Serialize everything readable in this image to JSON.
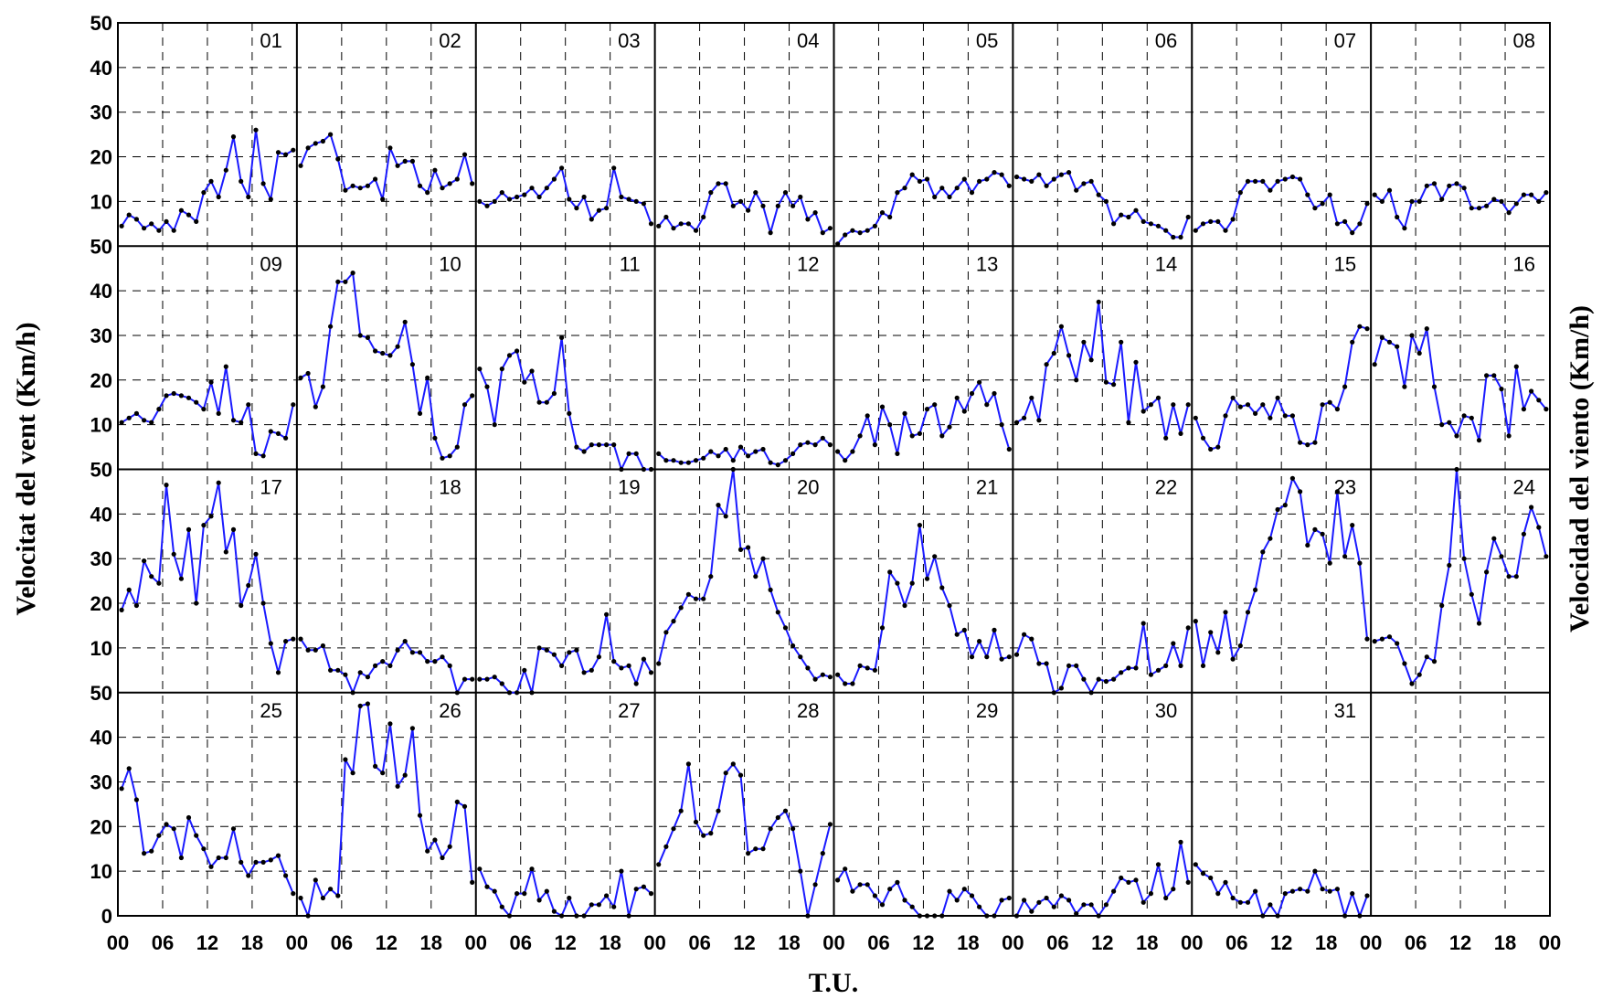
{
  "chart_data": {
    "type": "line",
    "ylabel_left": "Velocitat del vent (Km/h)",
    "ylabel_right": "Velocidad del viento (Km/h)",
    "xlabel": "T.U.",
    "ylim": [
      0,
      50
    ],
    "y_ticks": [
      0,
      10,
      20,
      30,
      40,
      50
    ],
    "x_tick_labels": [
      "00",
      "06",
      "12",
      "18"
    ],
    "x_tick_end_label": "00",
    "grid": true,
    "line_color": "#1a1aff",
    "marker_color": "#000000",
    "rows": 4,
    "days_per_row": 8,
    "hours": [
      0,
      1,
      2,
      3,
      4,
      5,
      6,
      7,
      8,
      9,
      10,
      11,
      12,
      13,
      14,
      15,
      16,
      17,
      18,
      19,
      20,
      21,
      22,
      23
    ],
    "days": [
      {
        "label": "01",
        "values": [
          4.5,
          7,
          6,
          4,
          5,
          3.5,
          5.5,
          3.5,
          8,
          7,
          5.5,
          12,
          14.5,
          11,
          17,
          24.5,
          14.5,
          11,
          26,
          14,
          10.5,
          21,
          20.5,
          21.5
        ]
      },
      {
        "label": "02",
        "values": [
          18,
          22,
          23,
          23.5,
          25,
          19.5,
          12.5,
          13.5,
          13,
          13.5,
          15,
          10.5,
          22,
          18,
          19,
          19,
          13.5,
          12,
          17,
          13,
          14,
          15,
          20.5,
          14
        ]
      },
      {
        "label": "03",
        "values": [
          10,
          9,
          10,
          12,
          10.5,
          11,
          11.5,
          13,
          11,
          13,
          15,
          17.5,
          10.5,
          8.5,
          11,
          6,
          8,
          8.5,
          17.5,
          11,
          10.5,
          10,
          9.5,
          5
        ]
      },
      {
        "label": "04",
        "values": [
          4.5,
          6.5,
          4,
          5,
          5,
          3.5,
          6.5,
          12,
          14,
          14,
          9,
          10,
          8,
          12,
          9,
          3,
          9,
          12,
          9,
          11,
          6,
          7.5,
          3,
          4
        ]
      },
      {
        "label": "05",
        "values": [
          0.5,
          2.5,
          3.5,
          3,
          3.5,
          4.5,
          7.5,
          6.5,
          12,
          13,
          16,
          14.5,
          15,
          11,
          13,
          11,
          13,
          15,
          12,
          14.5,
          15,
          16.5,
          16,
          13.5
        ]
      },
      {
        "label": "06",
        "values": [
          15.5,
          15,
          14.5,
          16,
          13.5,
          15,
          16,
          16.5,
          12.5,
          14,
          14.5,
          11.5,
          10,
          5,
          7,
          6.5,
          8,
          5.5,
          5,
          4.5,
          3.5,
          2,
          2,
          6.5
        ]
      },
      {
        "label": "07",
        "values": [
          3.5,
          5,
          5.5,
          5.5,
          3.5,
          6,
          12,
          14.5,
          14.5,
          14.5,
          12.5,
          14.5,
          15,
          15.5,
          15,
          11.5,
          8.5,
          9.5,
          11.5,
          5,
          5.5,
          3,
          5,
          9.5
        ]
      },
      {
        "label": "08",
        "values": [
          11.5,
          10,
          12.5,
          6.5,
          4,
          10,
          10,
          13.5,
          14,
          10.5,
          13.5,
          14,
          13,
          8.5,
          8.5,
          9,
          10.5,
          10,
          7.5,
          9.5,
          11.5,
          11.5,
          10,
          12
        ]
      },
      {
        "label": "09",
        "values": [
          10.5,
          11.5,
          12.5,
          11,
          10.5,
          13.5,
          16.5,
          17,
          16.5,
          16,
          15,
          13.5,
          19.5,
          12.5,
          23,
          11,
          10.5,
          14.5,
          3.5,
          3,
          8.5,
          8,
          7,
          14.5
        ]
      },
      {
        "label": "10",
        "values": [
          20.5,
          21.5,
          14,
          18.5,
          32,
          42,
          42,
          44,
          30,
          29.5,
          26.5,
          26,
          25.5,
          27.5,
          33,
          23.5,
          12.5,
          20.5,
          7,
          2.5,
          3,
          5,
          14.5,
          16.5
        ]
      },
      {
        "label": "11",
        "values": [
          22.5,
          18.5,
          10,
          22.5,
          25.5,
          26.5,
          19.5,
          22,
          15,
          15,
          17,
          29.5,
          12.5,
          5,
          4,
          5.5,
          5.5,
          5.5,
          5.5,
          0,
          3.5,
          3.5,
          0,
          0
        ]
      },
      {
        "label": "12",
        "values": [
          3.5,
          2,
          2,
          1.5,
          1.5,
          2,
          2.5,
          4,
          3,
          4.5,
          2,
          5,
          3,
          4,
          4.5,
          1.5,
          1,
          2,
          3.5,
          5.5,
          6,
          5.5,
          7,
          5.5
        ]
      },
      {
        "label": "13",
        "values": [
          4,
          2,
          4,
          7.5,
          12,
          5.5,
          14,
          10,
          3.5,
          12.5,
          7.5,
          8,
          13.5,
          14.5,
          7.5,
          9.5,
          16,
          13,
          17,
          19.5,
          14.5,
          17,
          10,
          4.5
        ]
      },
      {
        "label": "14",
        "values": [
          10.5,
          11.5,
          16,
          11,
          23.5,
          26,
          32,
          25.5,
          20,
          28.5,
          24.5,
          37.5,
          19.5,
          19,
          28.5,
          10.5,
          24,
          13,
          14.5,
          16,
          7,
          14.5,
          8,
          14.5
        ]
      },
      {
        "label": "15",
        "values": [
          11.5,
          7,
          4.5,
          5,
          12,
          16,
          14,
          14.5,
          12.5,
          14.5,
          11.5,
          16,
          12,
          12,
          6,
          5.5,
          6,
          14.5,
          15,
          13.5,
          18.5,
          28.5,
          32,
          31.5
        ]
      },
      {
        "label": "16",
        "values": [
          23.5,
          29.5,
          28.5,
          27.5,
          18.5,
          30,
          26,
          31.5,
          18.5,
          10,
          10.5,
          7.5,
          12,
          11.5,
          6.5,
          21,
          21,
          18,
          7.5,
          23,
          13.5,
          17.5,
          15.5,
          13.5
        ]
      },
      {
        "label": "17",
        "values": [
          18.5,
          23,
          19.5,
          29.5,
          26,
          24.5,
          46.5,
          31,
          25.5,
          36.5,
          20,
          37.5,
          39.5,
          47,
          31.5,
          36.5,
          19.5,
          24,
          31,
          20,
          11,
          4.5,
          11.5,
          12
        ]
      },
      {
        "label": "18",
        "values": [
          12,
          9.5,
          9.5,
          10.5,
          5,
          5,
          4,
          0,
          4.5,
          3.5,
          6,
          7,
          6,
          9.5,
          11.5,
          9,
          9,
          7,
          7,
          8,
          6,
          0,
          3,
          3
        ]
      },
      {
        "label": "19",
        "values": [
          3,
          3,
          3.5,
          2,
          0,
          0,
          5,
          0,
          10,
          9.5,
          8.5,
          6,
          9,
          9.5,
          4.5,
          5,
          8,
          17.5,
          7,
          5.5,
          6,
          2,
          7.5,
          4.5
        ]
      },
      {
        "label": "20",
        "values": [
          6.5,
          13.5,
          16,
          19,
          22,
          21,
          21,
          26,
          42,
          39.5,
          53,
          32,
          32.5,
          26,
          30,
          23,
          18,
          14.5,
          10.5,
          8,
          5.5,
          3,
          4,
          3.5
        ]
      },
      {
        "label": "21",
        "values": [
          4,
          2,
          2,
          6,
          5.5,
          5,
          14.5,
          27,
          24.5,
          19.5,
          24.5,
          37.5,
          25.5,
          30.5,
          23.5,
          19.5,
          13,
          14,
          8,
          11.5,
          8,
          14,
          7.5,
          8
        ]
      },
      {
        "label": "22",
        "values": [
          8.5,
          13,
          12,
          6.5,
          6.5,
          0,
          1,
          6,
          6,
          3,
          0,
          3,
          2.5,
          3,
          4.5,
          5.5,
          5.5,
          15.5,
          4,
          5,
          6,
          11,
          6,
          14.5
        ]
      },
      {
        "label": "23",
        "values": [
          16,
          6,
          13.5,
          9,
          18,
          7.5,
          10.5,
          18,
          23,
          31.5,
          34.5,
          41,
          42,
          48,
          45,
          33,
          36.5,
          35.5,
          29,
          45,
          30.5,
          37.5,
          29,
          12
        ]
      },
      {
        "label": "24",
        "values": [
          11.5,
          12,
          12.5,
          11,
          6.5,
          2,
          4,
          8,
          7,
          19.5,
          28.5,
          50.5,
          30,
          22,
          15.5,
          27,
          34.5,
          30.5,
          26,
          26,
          35.5,
          41.5,
          37,
          30.5
        ]
      },
      {
        "label": "25",
        "values": [
          28.5,
          33,
          26,
          14,
          14.5,
          18,
          20.5,
          19.5,
          13,
          22,
          18,
          15,
          11,
          13,
          13,
          19.5,
          12,
          9,
          12,
          12,
          12.5,
          13.5,
          9,
          5
        ]
      },
      {
        "label": "26",
        "values": [
          4,
          0,
          8,
          4,
          6,
          4.5,
          35,
          32,
          47,
          47.5,
          33.5,
          32,
          43,
          29,
          31.5,
          42,
          22.5,
          14.5,
          17,
          13,
          15.5,
          25.5,
          24.5,
          7.5
        ]
      },
      {
        "label": "27",
        "values": [
          10.5,
          6.5,
          5.5,
          2,
          0,
          5,
          5,
          10.5,
          3.5,
          5.5,
          1,
          0,
          4,
          0,
          0,
          2.5,
          2.5,
          4.5,
          2,
          10,
          0,
          6,
          6.5,
          5
        ]
      },
      {
        "label": "28",
        "values": [
          11.5,
          15.5,
          19.5,
          23.5,
          34,
          21,
          18,
          18.5,
          23.5,
          32,
          34,
          31.5,
          14,
          15,
          15,
          19.5,
          22,
          23.5,
          19.5,
          10,
          0,
          7,
          14,
          20.5
        ]
      },
      {
        "label": "29",
        "values": [
          8,
          10.5,
          5.5,
          7,
          7,
          4.5,
          2.5,
          6,
          7.5,
          3.5,
          2,
          0,
          0,
          0,
          0,
          5.5,
          3.5,
          6,
          4.5,
          2,
          0,
          0,
          3.5,
          4
        ]
      },
      {
        "label": "30",
        "values": [
          0,
          3.5,
          1,
          3,
          4,
          2,
          4.5,
          3.5,
          0.5,
          2.5,
          2.5,
          0,
          2.5,
          5.5,
          8.5,
          7.5,
          8,
          3,
          5,
          11.5,
          4,
          6,
          16.5,
          7.5
        ]
      },
      {
        "label": "31",
        "values": [
          11.5,
          9.5,
          8.5,
          5,
          7.5,
          4,
          3,
          3,
          5.5,
          0,
          2.5,
          0,
          5,
          5.5,
          6,
          5.5,
          10,
          6,
          5.5,
          6,
          0,
          5,
          0,
          4.5
        ]
      },
      {
        "label": "",
        "values": []
      }
    ]
  }
}
